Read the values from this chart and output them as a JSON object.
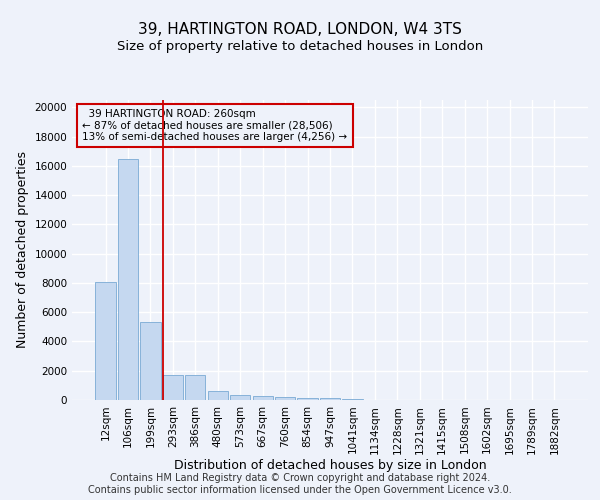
{
  "title": "39, HARTINGTON ROAD, LONDON, W4 3TS",
  "subtitle": "Size of property relative to detached houses in London",
  "xlabel": "Distribution of detached houses by size in London",
  "ylabel": "Number of detached properties",
  "footer_line1": "Contains HM Land Registry data © Crown copyright and database right 2024.",
  "footer_line2": "Contains public sector information licensed under the Open Government Licence v3.0.",
  "bar_labels": [
    "12sqm",
    "106sqm",
    "199sqm",
    "293sqm",
    "386sqm",
    "480sqm",
    "573sqm",
    "667sqm",
    "760sqm",
    "854sqm",
    "947sqm",
    "1041sqm",
    "1134sqm",
    "1228sqm",
    "1321sqm",
    "1415sqm",
    "1508sqm",
    "1602sqm",
    "1695sqm",
    "1789sqm",
    "1882sqm"
  ],
  "bar_values": [
    8050,
    16500,
    5300,
    1700,
    1700,
    600,
    350,
    280,
    230,
    150,
    150,
    50,
    30,
    20,
    15,
    10,
    5,
    5,
    5,
    5,
    5
  ],
  "bar_color": "#c5d8f0",
  "bar_edge_color": "#7aaad4",
  "vline_x": 2.55,
  "vline_color": "#cc0000",
  "annotation_text": "  39 HARTINGTON ROAD: 260sqm\n← 87% of detached houses are smaller (28,506)\n13% of semi-detached houses are larger (4,256) →",
  "annotation_box_color": "#cc0000",
  "ylim": [
    0,
    20500
  ],
  "yticks": [
    0,
    2000,
    4000,
    6000,
    8000,
    10000,
    12000,
    14000,
    16000,
    18000,
    20000
  ],
  "background_color": "#eef2fa",
  "grid_color": "#ffffff",
  "title_fontsize": 11,
  "subtitle_fontsize": 9.5,
  "axis_label_fontsize": 9,
  "tick_fontsize": 7.5,
  "annotation_fontsize": 7.5,
  "footer_fontsize": 7
}
